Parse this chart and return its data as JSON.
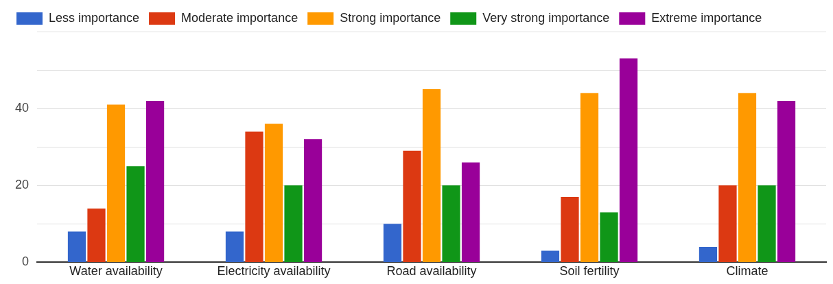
{
  "chart_data": {
    "type": "bar",
    "categories": [
      "Water availability",
      "Electricity availability",
      "Road availability",
      "Soil fertility",
      "Climate"
    ],
    "series": [
      {
        "name": "Less importance",
        "color": "#3366cc",
        "values": [
          8,
          8,
          10,
          3,
          4
        ]
      },
      {
        "name": "Moderate importance",
        "color": "#dc3912",
        "values": [
          14,
          34,
          29,
          17,
          20
        ]
      },
      {
        "name": "Strong importance",
        "color": "#ff9900",
        "values": [
          41,
          36,
          45,
          44,
          44
        ]
      },
      {
        "name": "Very strong importance",
        "color": "#109618",
        "values": [
          25,
          20,
          20,
          13,
          20
        ]
      },
      {
        "name": "Extreme importance",
        "color": "#990099",
        "values": [
          42,
          32,
          26,
          53,
          42
        ]
      }
    ],
    "ylim": [
      0,
      60
    ],
    "yticks": [
      0,
      {
        "value": 10,
        "label": null
      },
      20,
      {
        "value": 30,
        "label": null
      },
      40,
      {
        "value": 50,
        "label": null
      },
      {
        "value": 60,
        "label": null
      }
    ],
    "grid": "y",
    "legend": "top left"
  }
}
